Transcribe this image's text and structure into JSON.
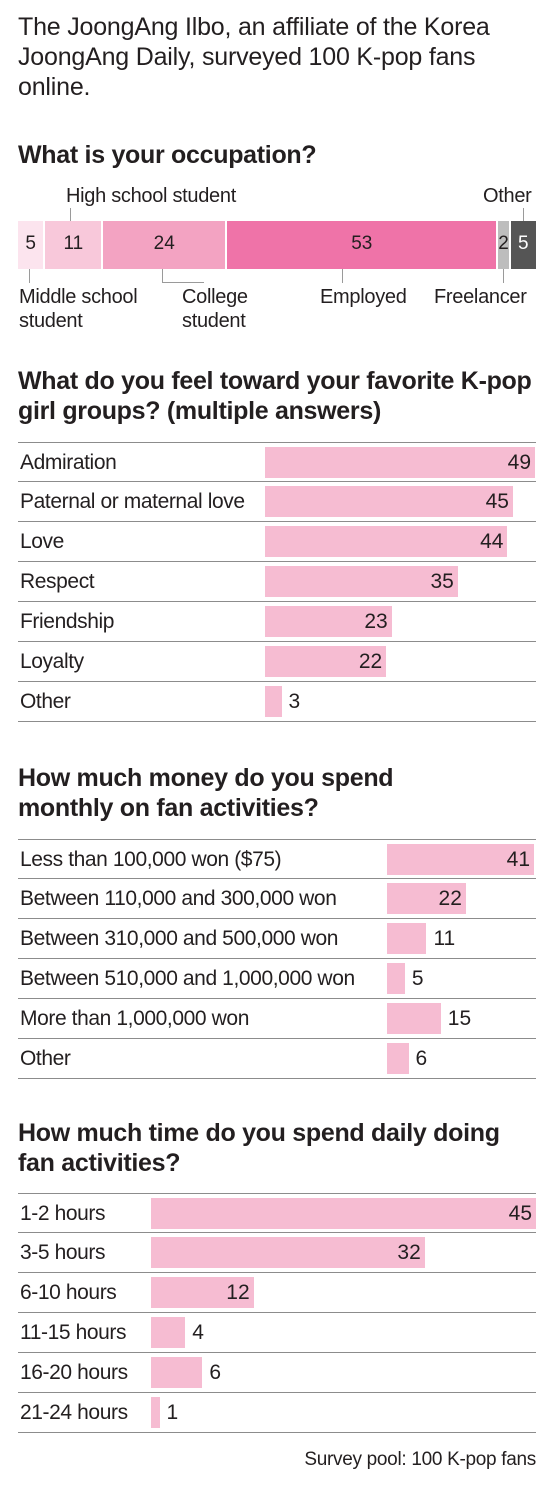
{
  "intro": "The JoongAng Ilbo, an affiliate of the Korea JoongAng Daily, surveyed 100 K-pop fans online.",
  "footnote": "Survey pool: 100 K-pop fans",
  "colors": {
    "bar_light": "#f6bcd2",
    "pale": "#fce4ee",
    "light_pink": "#f8c8da",
    "mid_pink": "#f3a3c2",
    "hot_pink": "#ef73a8",
    "grey": "#bdbdbd",
    "dark": "#555555"
  },
  "chart_data": [
    {
      "type": "bar",
      "title": "What is your occupation?",
      "categories": [
        "Middle school student",
        "High school student",
        "College student",
        "Employed",
        "Freelancer",
        "Other"
      ],
      "values": [
        5,
        11,
        24,
        53,
        2,
        5
      ],
      "segment_colors": [
        "#fce4ee",
        "#f8c8da",
        "#f3a3c2",
        "#ef73a8",
        "#bdbdbd",
        "#555555"
      ],
      "stacked": true
    },
    {
      "type": "bar",
      "title": "What do you feel toward your favorite K-pop girl groups? (multiple answers)",
      "categories": [
        "Admiration",
        "Paternal or maternal love",
        "Love",
        "Respect",
        "Friendship",
        "Loyalty",
        "Other"
      ],
      "values": [
        49,
        45,
        44,
        35,
        23,
        22,
        3
      ]
    },
    {
      "type": "bar",
      "title": "How much money do you spend monthly on fan activities?",
      "categories": [
        "Less than 100,000 won ($75)",
        "Between 110,000 and 300,000 won",
        "Between 310,000 and 500,000 won",
        "Between 510,000 and 1,000,000 won",
        "More than 1,000,000 won",
        "Other"
      ],
      "values": [
        41,
        22,
        11,
        5,
        15,
        6
      ]
    },
    {
      "type": "bar",
      "title": "How much time do you spend daily doing fan activities?",
      "categories": [
        "1-2 hours",
        "3-5 hours",
        "6-10 hours",
        "11-15 hours",
        "16-20 hours",
        "21-24 hours"
      ],
      "values": [
        45,
        32,
        12,
        4,
        6,
        1
      ]
    }
  ]
}
